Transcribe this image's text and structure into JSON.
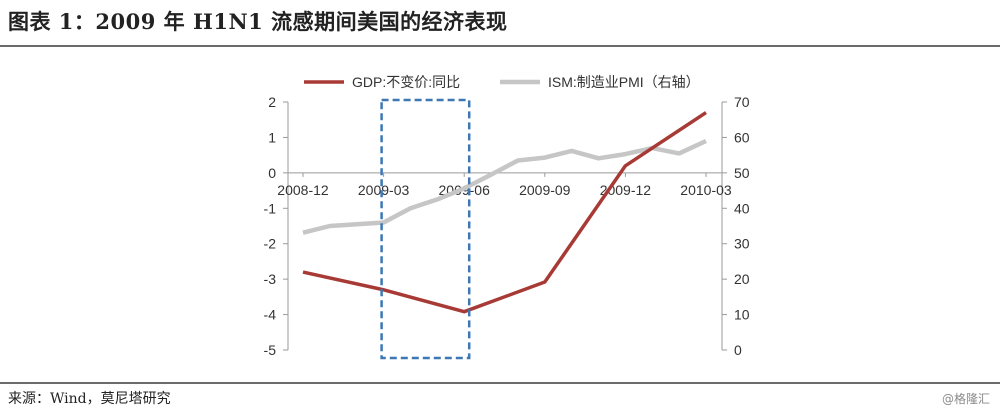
{
  "figure": {
    "title": "图表 1：2009 年 H1N1 流感期间美国的经济表现",
    "source": "来源：Wind，莫尼塔研究",
    "watermark": "@格隆汇"
  },
  "colors": {
    "gdp": "#a83a36",
    "pmi": "#c6c6c6",
    "highlight_box": "#3d78b5",
    "axis": "#9a9a9a",
    "text": "#333333"
  },
  "chart_data": {
    "type": "line",
    "title": "",
    "x_tick_labels": [
      "2008-12",
      "2009-03",
      "2009-06",
      "2009-09",
      "2009-12",
      "2010-03"
    ],
    "y_left": {
      "range": [
        -5,
        2
      ],
      "ticks": [
        2,
        1,
        0,
        -1,
        -2,
        -3,
        -4,
        -5
      ]
    },
    "y_right": {
      "range": [
        0,
        70
      ],
      "ticks": [
        70,
        60,
        50,
        40,
        30,
        20,
        10,
        0
      ]
    },
    "legend_position": "top",
    "grid": false,
    "highlight": {
      "x_from": "2009-03",
      "x_to": "2009-06",
      "style": "dashed box"
    },
    "series": [
      {
        "name": "GDP:不变价:同比",
        "axis": "left",
        "x": [
          "2008-12",
          "2009-03",
          "2009-06",
          "2009-09",
          "2009-12",
          "2010-03"
        ],
        "values": [
          -2.8,
          -3.3,
          -3.92,
          -3.08,
          0.2,
          1.7
        ]
      },
      {
        "name": "ISM:制造业PMI（右轴）",
        "axis": "right",
        "x": [
          "2008-12",
          "2009-01",
          "2009-02",
          "2009-03",
          "2009-04",
          "2009-05",
          "2009-06",
          "2009-07",
          "2009-08",
          "2009-09",
          "2009-10",
          "2009-11",
          "2009-12",
          "2010-01",
          "2010-02",
          "2010-03"
        ],
        "values": [
          33.1,
          35.0,
          35.5,
          36.0,
          40.0,
          42.5,
          45.6,
          49.5,
          53.5,
          54.3,
          56.2,
          54.1,
          55.3,
          57.0,
          55.5,
          59.0
        ]
      }
    ]
  }
}
